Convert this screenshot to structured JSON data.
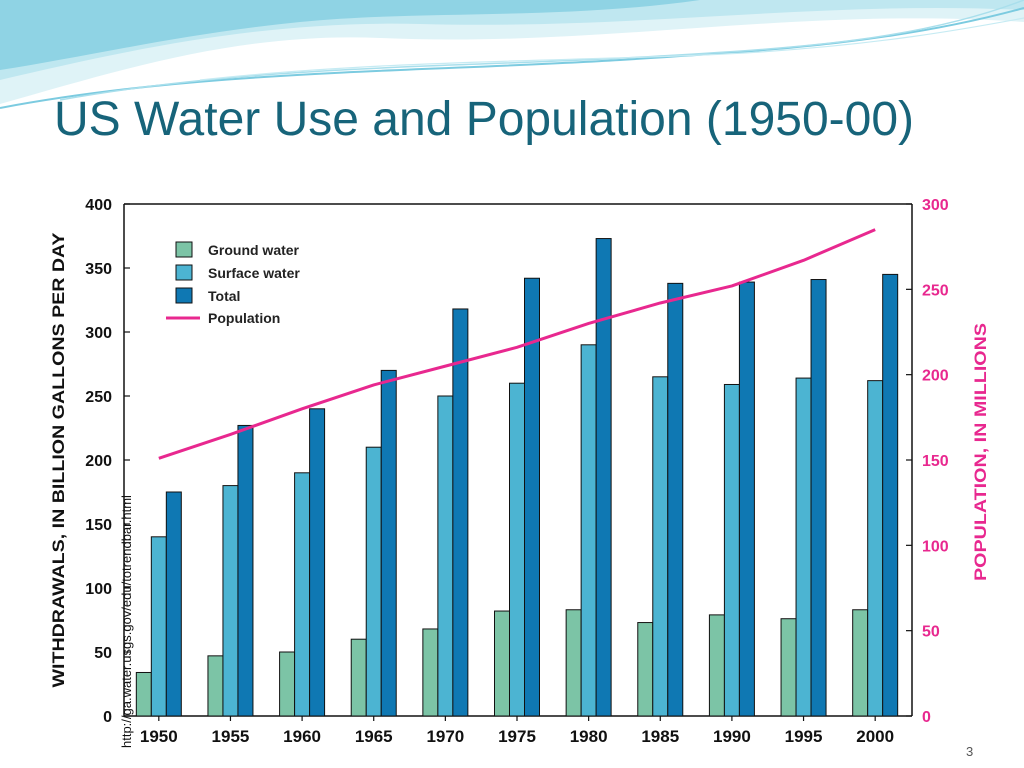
{
  "slide": {
    "title": "US Water Use and Population (1950-00)",
    "source": "http://ga.water.usgs.gov/edu/totrendbar.html",
    "page_number": "3"
  },
  "colors": {
    "ground_water": "#7cc4a6",
    "surface_water": "#4cb4d2",
    "total": "#0f78b3",
    "population": "#e8288f",
    "title": "#17647a",
    "right_axis": "#e8288f"
  },
  "chart_data": {
    "type": "bar",
    "title": "",
    "categories": [
      "1950",
      "1955",
      "1960",
      "1965",
      "1970",
      "1975",
      "1980",
      "1985",
      "1990",
      "1995",
      "2000"
    ],
    "series": [
      {
        "name": "Ground water",
        "values": [
          34,
          47,
          50,
          60,
          68,
          82,
          83,
          73,
          79,
          76,
          83
        ]
      },
      {
        "name": "Surface water",
        "values": [
          140,
          180,
          190,
          210,
          250,
          260,
          290,
          265,
          259,
          264,
          262
        ]
      },
      {
        "name": "Total",
        "values": [
          175,
          227,
          240,
          270,
          318,
          342,
          373,
          338,
          339,
          341,
          345
        ]
      }
    ],
    "line_series": {
      "name": "Population",
      "axis": "right",
      "values": [
        151,
        165,
        180,
        194,
        205,
        216,
        230,
        242,
        252,
        267,
        285
      ]
    },
    "ylabel": "WITHDRAWALS, IN BILLION GALLONS PER DAY",
    "ylabel_right": "POPULATION, IN MILLIONS",
    "ylim": [
      0,
      400
    ],
    "y_ticks": [
      0,
      50,
      100,
      150,
      200,
      250,
      300,
      350,
      400
    ],
    "ylim_right": [
      0,
      300
    ],
    "y_ticks_right": [
      0,
      50,
      100,
      150,
      200,
      250,
      300
    ],
    "legend_position": "top-left",
    "grid": false
  }
}
